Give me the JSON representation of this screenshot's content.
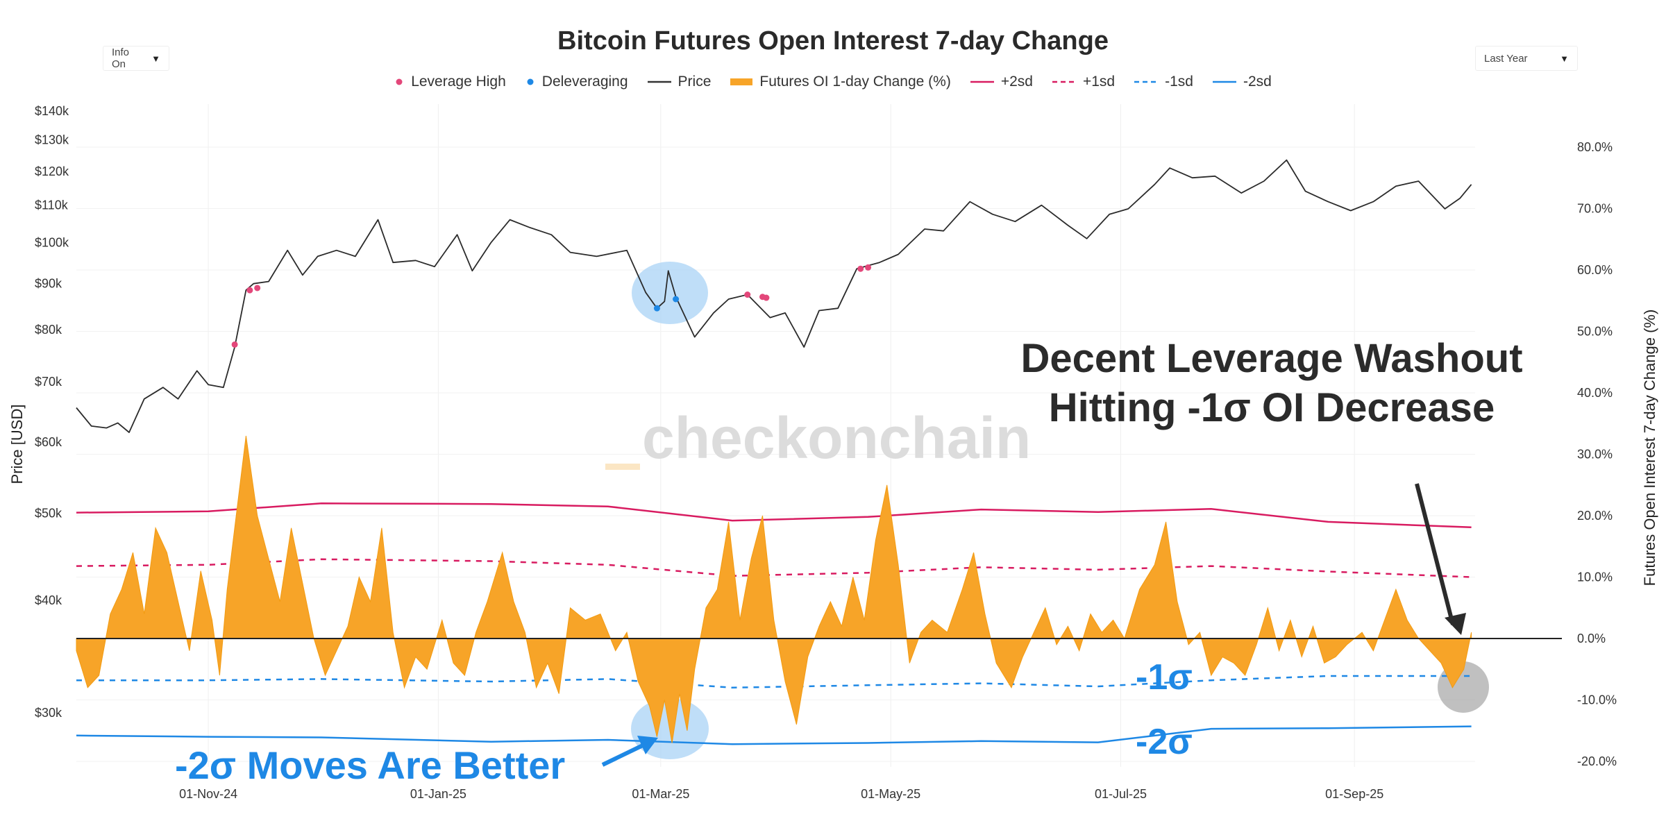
{
  "controls": {
    "info_label": "Info On",
    "range_label": "Last Year",
    "caret": "▼"
  },
  "chart_data": {
    "type": "line",
    "title": "Bitcoin Futures Open Interest 7-day Change",
    "legend": [
      {
        "name": "Leverage High",
        "kind": "dot",
        "color": "#e3477a"
      },
      {
        "name": "Deleveraging",
        "kind": "dot",
        "color": "#1e88e5"
      },
      {
        "name": "Price",
        "kind": "line",
        "color": "#333333"
      },
      {
        "name": "Futures OI 1-day Change (%)",
        "kind": "area",
        "color": "#f7a428"
      },
      {
        "name": "+2sd",
        "kind": "line",
        "color": "#d81b60"
      },
      {
        "name": "+1sd",
        "kind": "dash",
        "color": "#d81b60"
      },
      {
        "name": "-1sd",
        "kind": "dash",
        "color": "#1e88e5"
      },
      {
        "name": "-2sd",
        "kind": "line",
        "color": "#1e88e5"
      }
    ],
    "ylabel_left": "Price [USD]",
    "ylabel_right": "Futures Open Interest 7-day Change (%)",
    "left_ticks": [
      {
        "label": "$140k",
        "value": 140000
      },
      {
        "label": "$130k",
        "value": 130000
      },
      {
        "label": "$120k",
        "value": 120000
      },
      {
        "label": "$110k",
        "value": 110000
      },
      {
        "label": "$100k",
        "value": 100000
      },
      {
        "label": "$90k",
        "value": 90000
      },
      {
        "label": "$80k",
        "value": 80000
      },
      {
        "label": "$70k",
        "value": 70000
      },
      {
        "label": "$60k",
        "value": 60000
      },
      {
        "label": "$50k",
        "value": 50000
      },
      {
        "label": "$40k",
        "value": 40000
      },
      {
        "label": "$30k",
        "value": 30000
      }
    ],
    "left_scale": "log",
    "right_ticks": [
      "80.0%",
      "70.0%",
      "60.0%",
      "50.0%",
      "40.0%",
      "30.0%",
      "20.0%",
      "10.0%",
      "0.0%",
      "-10.0%",
      "-20.0%"
    ],
    "right_range": [
      -20,
      80
    ],
    "x_ticks": [
      "01-Nov-24",
      "01-Jan-25",
      "01-Mar-25",
      "01-May-25",
      "01-Jul-25",
      "01-Sep-25"
    ],
    "x_range": [
      "2024-09-27",
      "2025-10-03"
    ],
    "price_series": [
      [
        "2024-09-27",
        65500
      ],
      [
        "2024-10-01",
        62500
      ],
      [
        "2024-10-05",
        62200
      ],
      [
        "2024-10-08",
        63000
      ],
      [
        "2024-10-11",
        61500
      ],
      [
        "2024-10-15",
        67000
      ],
      [
        "2024-10-20",
        69000
      ],
      [
        "2024-10-24",
        67000
      ],
      [
        "2024-10-29",
        72000
      ],
      [
        "2024-11-01",
        69500
      ],
      [
        "2024-11-05",
        69000
      ],
      [
        "2024-11-08",
        76500
      ],
      [
        "2024-11-11",
        88500
      ],
      [
        "2024-11-13",
        90000
      ],
      [
        "2024-11-17",
        90500
      ],
      [
        "2024-11-22",
        98000
      ],
      [
        "2024-11-26",
        92000
      ],
      [
        "2024-11-30",
        96500
      ],
      [
        "2024-12-05",
        98000
      ],
      [
        "2024-12-10",
        96500
      ],
      [
        "2024-12-16",
        106000
      ],
      [
        "2024-12-20",
        95000
      ],
      [
        "2024-12-26",
        95500
      ],
      [
        "2024-12-31",
        94000
      ],
      [
        "2025-01-06",
        102000
      ],
      [
        "2025-01-10",
        93000
      ],
      [
        "2025-01-15",
        100000
      ],
      [
        "2025-01-20",
        106000
      ],
      [
        "2025-01-25",
        104000
      ],
      [
        "2025-01-31",
        102000
      ],
      [
        "2025-02-05",
        97500
      ],
      [
        "2025-02-12",
        96500
      ],
      [
        "2025-02-20",
        98000
      ],
      [
        "2025-02-25",
        88000
      ],
      [
        "2025-02-28",
        84500
      ],
      [
        "2025-03-02",
        86000
      ],
      [
        "2025-03-03",
        93000
      ],
      [
        "2025-03-05",
        87000
      ],
      [
        "2025-03-10",
        78500
      ],
      [
        "2025-03-15",
        83500
      ],
      [
        "2025-03-19",
        86500
      ],
      [
        "2025-03-24",
        87500
      ],
      [
        "2025-03-30",
        82500
      ],
      [
        "2025-04-03",
        83500
      ],
      [
        "2025-04-08",
        76500
      ],
      [
        "2025-04-12",
        84000
      ],
      [
        "2025-04-17",
        84500
      ],
      [
        "2025-04-22",
        93500
      ],
      [
        "2025-04-28",
        95000
      ],
      [
        "2025-05-03",
        97000
      ],
      [
        "2025-05-10",
        103500
      ],
      [
        "2025-05-15",
        103000
      ],
      [
        "2025-05-22",
        111000
      ],
      [
        "2025-05-28",
        107500
      ],
      [
        "2025-06-03",
        105500
      ],
      [
        "2025-06-10",
        110000
      ],
      [
        "2025-06-17",
        104500
      ],
      [
        "2025-06-22",
        101000
      ],
      [
        "2025-06-28",
        107500
      ],
      [
        "2025-07-03",
        109000
      ],
      [
        "2025-07-10",
        116000
      ],
      [
        "2025-07-14",
        121000
      ],
      [
        "2025-07-20",
        118000
      ],
      [
        "2025-07-26",
        118500
      ],
      [
        "2025-08-02",
        113500
      ],
      [
        "2025-08-08",
        117000
      ],
      [
        "2025-08-14",
        123500
      ],
      [
        "2025-08-19",
        114000
      ],
      [
        "2025-08-25",
        111000
      ],
      [
        "2025-08-31",
        108500
      ],
      [
        "2025-09-06",
        111000
      ],
      [
        "2025-09-12",
        115500
      ],
      [
        "2025-09-18",
        117000
      ],
      [
        "2025-09-25",
        109000
      ],
      [
        "2025-09-29",
        112000
      ],
      [
        "2025-10-02",
        116000
      ]
    ],
    "oi_change_series": [
      [
        "2024-09-27",
        -2
      ],
      [
        "2024-09-30",
        -8
      ],
      [
        "2024-10-03",
        -6
      ],
      [
        "2024-10-06",
        4
      ],
      [
        "2024-10-09",
        8
      ],
      [
        "2024-10-12",
        14
      ],
      [
        "2024-10-15",
        4
      ],
      [
        "2024-10-18",
        18
      ],
      [
        "2024-10-21",
        14
      ],
      [
        "2024-10-24",
        6
      ],
      [
        "2024-10-27",
        -2
      ],
      [
        "2024-10-30",
        11
      ],
      [
        "2024-11-02",
        3
      ],
      [
        "2024-11-04",
        -6
      ],
      [
        "2024-11-06",
        8
      ],
      [
        "2024-11-08",
        18
      ],
      [
        "2024-11-11",
        33
      ],
      [
        "2024-11-14",
        20
      ],
      [
        "2024-11-17",
        13
      ],
      [
        "2024-11-20",
        6
      ],
      [
        "2024-11-23",
        18
      ],
      [
        "2024-11-26",
        9
      ],
      [
        "2024-11-29",
        0
      ],
      [
        "2024-12-02",
        -6
      ],
      [
        "2024-12-05",
        -2
      ],
      [
        "2024-12-08",
        2
      ],
      [
        "2024-12-11",
        10
      ],
      [
        "2024-12-14",
        6
      ],
      [
        "2024-12-17",
        18
      ],
      [
        "2024-12-20",
        1
      ],
      [
        "2024-12-23",
        -8
      ],
      [
        "2024-12-26",
        -3
      ],
      [
        "2024-12-29",
        -5
      ],
      [
        "2025-01-02",
        3
      ],
      [
        "2025-01-05",
        -4
      ],
      [
        "2025-01-08",
        -6
      ],
      [
        "2025-01-11",
        1
      ],
      [
        "2025-01-14",
        6
      ],
      [
        "2025-01-18",
        14
      ],
      [
        "2025-01-21",
        6
      ],
      [
        "2025-01-24",
        1
      ],
      [
        "2025-01-27",
        -8
      ],
      [
        "2025-01-30",
        -4
      ],
      [
        "2025-02-02",
        -9
      ],
      [
        "2025-02-05",
        5
      ],
      [
        "2025-02-09",
        3
      ],
      [
        "2025-02-13",
        4
      ],
      [
        "2025-02-17",
        -2
      ],
      [
        "2025-02-20",
        1
      ],
      [
        "2025-02-23",
        -7
      ],
      [
        "2025-02-26",
        -11
      ],
      [
        "2025-02-28",
        -16
      ],
      [
        "2025-03-02",
        -10
      ],
      [
        "2025-03-04",
        -17
      ],
      [
        "2025-03-06",
        -9
      ],
      [
        "2025-03-08",
        -15
      ],
      [
        "2025-03-10",
        -5
      ],
      [
        "2025-03-13",
        5
      ],
      [
        "2025-03-16",
        8
      ],
      [
        "2025-03-19",
        19
      ],
      [
        "2025-03-22",
        3
      ],
      [
        "2025-03-25",
        13
      ],
      [
        "2025-03-28",
        20
      ],
      [
        "2025-03-31",
        3
      ],
      [
        "2025-04-03",
        -7
      ],
      [
        "2025-04-06",
        -14
      ],
      [
        "2025-04-09",
        -3
      ],
      [
        "2025-04-12",
        2
      ],
      [
        "2025-04-15",
        6
      ],
      [
        "2025-04-18",
        2
      ],
      [
        "2025-04-21",
        10
      ],
      [
        "2025-04-24",
        3
      ],
      [
        "2025-04-27",
        16
      ],
      [
        "2025-04-30",
        25
      ],
      [
        "2025-05-03",
        12
      ],
      [
        "2025-05-06",
        -4
      ],
      [
        "2025-05-09",
        1
      ],
      [
        "2025-05-12",
        3
      ],
      [
        "2025-05-16",
        1
      ],
      [
        "2025-05-20",
        8
      ],
      [
        "2025-05-23",
        14
      ],
      [
        "2025-05-26",
        4
      ],
      [
        "2025-05-29",
        -4
      ],
      [
        "2025-06-02",
        -8
      ],
      [
        "2025-06-05",
        -3
      ],
      [
        "2025-06-08",
        1
      ],
      [
        "2025-06-11",
        5
      ],
      [
        "2025-06-14",
        -1
      ],
      [
        "2025-06-17",
        2
      ],
      [
        "2025-06-20",
        -2
      ],
      [
        "2025-06-23",
        4
      ],
      [
        "2025-06-26",
        1
      ],
      [
        "2025-06-29",
        3
      ],
      [
        "2025-07-02",
        0
      ],
      [
        "2025-07-06",
        8
      ],
      [
        "2025-07-10",
        12
      ],
      [
        "2025-07-13",
        19
      ],
      [
        "2025-07-16",
        6
      ],
      [
        "2025-07-19",
        -1
      ],
      [
        "2025-07-22",
        1
      ],
      [
        "2025-07-25",
        -6
      ],
      [
        "2025-07-28",
        -3
      ],
      [
        "2025-07-31",
        -4
      ],
      [
        "2025-08-03",
        -6
      ],
      [
        "2025-08-06",
        -1
      ],
      [
        "2025-08-09",
        5
      ],
      [
        "2025-08-12",
        -2
      ],
      [
        "2025-08-15",
        3
      ],
      [
        "2025-08-18",
        -3
      ],
      [
        "2025-08-21",
        2
      ],
      [
        "2025-08-24",
        -4
      ],
      [
        "2025-08-27",
        -3
      ],
      [
        "2025-08-30",
        -1
      ],
      [
        "2025-09-03",
        1
      ],
      [
        "2025-09-06",
        -2
      ],
      [
        "2025-09-09",
        3
      ],
      [
        "2025-09-12",
        8
      ],
      [
        "2025-09-15",
        3
      ],
      [
        "2025-09-18",
        0
      ],
      [
        "2025-09-21",
        -2
      ],
      [
        "2025-09-24",
        -4
      ],
      [
        "2025-09-27",
        -8
      ],
      [
        "2025-09-30",
        -5
      ],
      [
        "2025-10-02",
        1
      ]
    ],
    "bands": {
      "plus_2sd": [
        [
          "2024-09-27",
          20.5
        ],
        [
          "2024-11-01",
          20.7
        ],
        [
          "2024-12-01",
          22.0
        ],
        [
          "2025-01-15",
          21.9
        ],
        [
          "2025-02-15",
          21.5
        ],
        [
          "2025-03-20",
          19.2
        ],
        [
          "2025-04-25",
          19.8
        ],
        [
          "2025-05-25",
          21.0
        ],
        [
          "2025-06-25",
          20.6
        ],
        [
          "2025-07-25",
          21.1
        ],
        [
          "2025-08-25",
          19.0
        ],
        [
          "2025-10-02",
          18.1
        ]
      ],
      "plus_1sd": [
        [
          "2024-09-27",
          11.8
        ],
        [
          "2024-11-01",
          12.0
        ],
        [
          "2024-12-01",
          12.9
        ],
        [
          "2025-01-15",
          12.6
        ],
        [
          "2025-02-15",
          12.0
        ],
        [
          "2025-03-20",
          10.2
        ],
        [
          "2025-04-25",
          10.7
        ],
        [
          "2025-05-25",
          11.6
        ],
        [
          "2025-06-25",
          11.2
        ],
        [
          "2025-07-25",
          11.8
        ],
        [
          "2025-08-25",
          10.9
        ],
        [
          "2025-10-02",
          10.0
        ]
      ],
      "minus_1sd": [
        [
          "2024-09-27",
          -6.8
        ],
        [
          "2024-11-01",
          -6.8
        ],
        [
          "2024-12-01",
          -6.6
        ],
        [
          "2025-01-15",
          -7.0
        ],
        [
          "2025-02-15",
          -6.6
        ],
        [
          "2025-03-20",
          -8.0
        ],
        [
          "2025-04-25",
          -7.6
        ],
        [
          "2025-05-25",
          -7.3
        ],
        [
          "2025-06-25",
          -7.8
        ],
        [
          "2025-07-25",
          -6.8
        ],
        [
          "2025-08-25",
          -6.1
        ],
        [
          "2025-10-02",
          -6.1
        ]
      ],
      "minus_2sd": [
        [
          "2024-09-27",
          -15.8
        ],
        [
          "2024-11-01",
          -16.0
        ],
        [
          "2024-12-01",
          -16.1
        ],
        [
          "2025-01-15",
          -16.8
        ],
        [
          "2025-02-15",
          -16.5
        ],
        [
          "2025-03-20",
          -17.2
        ],
        [
          "2025-04-25",
          -17.0
        ],
        [
          "2025-05-25",
          -16.7
        ],
        [
          "2025-06-25",
          -16.9
        ],
        [
          "2025-07-25",
          -14.7
        ],
        [
          "2025-08-25",
          -14.6
        ],
        [
          "2025-10-02",
          -14.3
        ]
      ]
    },
    "leverage_high_points": [
      [
        "2024-11-08",
        77000
      ],
      [
        "2024-11-12",
        88500
      ],
      [
        "2024-11-14",
        89000
      ],
      [
        "2025-03-24",
        87500
      ],
      [
        "2025-03-28",
        87000
      ],
      [
        "2025-03-29",
        86800
      ],
      [
        "2025-04-23",
        93500
      ],
      [
        "2025-04-25",
        93800
      ]
    ],
    "deleveraging_points": [
      [
        "2025-02-28",
        84500
      ],
      [
        "2025-03-05",
        86500
      ]
    ],
    "annotations": {
      "top_right_line1": "Decent Leverage Washout",
      "top_right_line2": "Hitting -1σ OI Decrease",
      "bottom_left": "-2σ Moves Are Better",
      "label_minus1": "-1σ",
      "label_minus2": "-2σ",
      "watermark": "checkonchain"
    }
  }
}
